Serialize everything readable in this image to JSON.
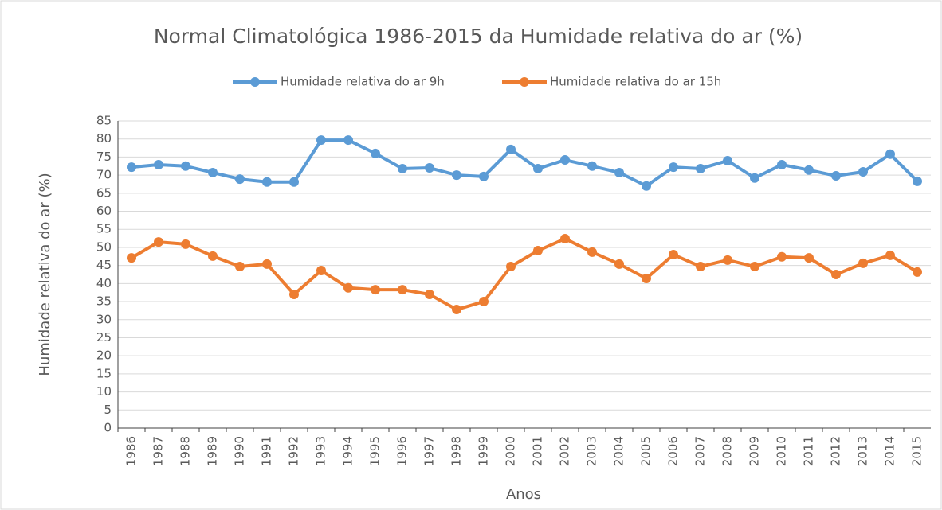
{
  "chart_data": {
    "type": "line",
    "title": "Normal Climatológica 1986-2015 da Humidade relativa do ar (%)",
    "x_label": "Anos",
    "y_label": "Humidade relativa do ar (%)",
    "categories": [
      "1986",
      "1987",
      "1988",
      "1989",
      "1990",
      "1991",
      "1992",
      "1993",
      "1994",
      "1995",
      "1996",
      "1997",
      "1998",
      "1999",
      "2000",
      "2001",
      "2002",
      "2003",
      "2004",
      "2005",
      "2006",
      "2007",
      "2008",
      "2009",
      "2010",
      "2011",
      "2012",
      "2013",
      "2014",
      "2015"
    ],
    "series": [
      {
        "name": "Humidade relativa do ar 9h",
        "color": "#5b9bd5",
        "values": [
          72.2,
          72.9,
          72.5,
          70.7,
          68.9,
          68.1,
          68.1,
          79.7,
          79.7,
          76,
          71.8,
          72,
          70,
          69.6,
          77.1,
          71.8,
          74.2,
          72.5,
          70.7,
          67,
          72.2,
          71.8,
          74,
          69.2,
          72.9,
          71.4,
          69.8,
          70.9,
          75.8,
          68.3
        ]
      },
      {
        "name": "Humidade relativa do ar 15h",
        "color": "#ed7d31",
        "values": [
          47.1,
          51.5,
          50.9,
          47.6,
          44.7,
          45.4,
          37,
          43.6,
          38.8,
          38.3,
          38.3,
          37,
          32.8,
          35,
          44.7,
          49.1,
          52.4,
          48.7,
          45.4,
          41.4,
          48,
          44.7,
          46.5,
          44.7,
          47.4,
          47.1,
          42.5,
          45.6,
          47.8,
          43.2
        ]
      }
    ],
    "ylim": [
      0,
      85
    ],
    "yticks": [
      0,
      5,
      10,
      15,
      20,
      25,
      30,
      35,
      40,
      45,
      50,
      55,
      60,
      65,
      70,
      75,
      80,
      85
    ],
    "grid": true,
    "legend": "top"
  }
}
